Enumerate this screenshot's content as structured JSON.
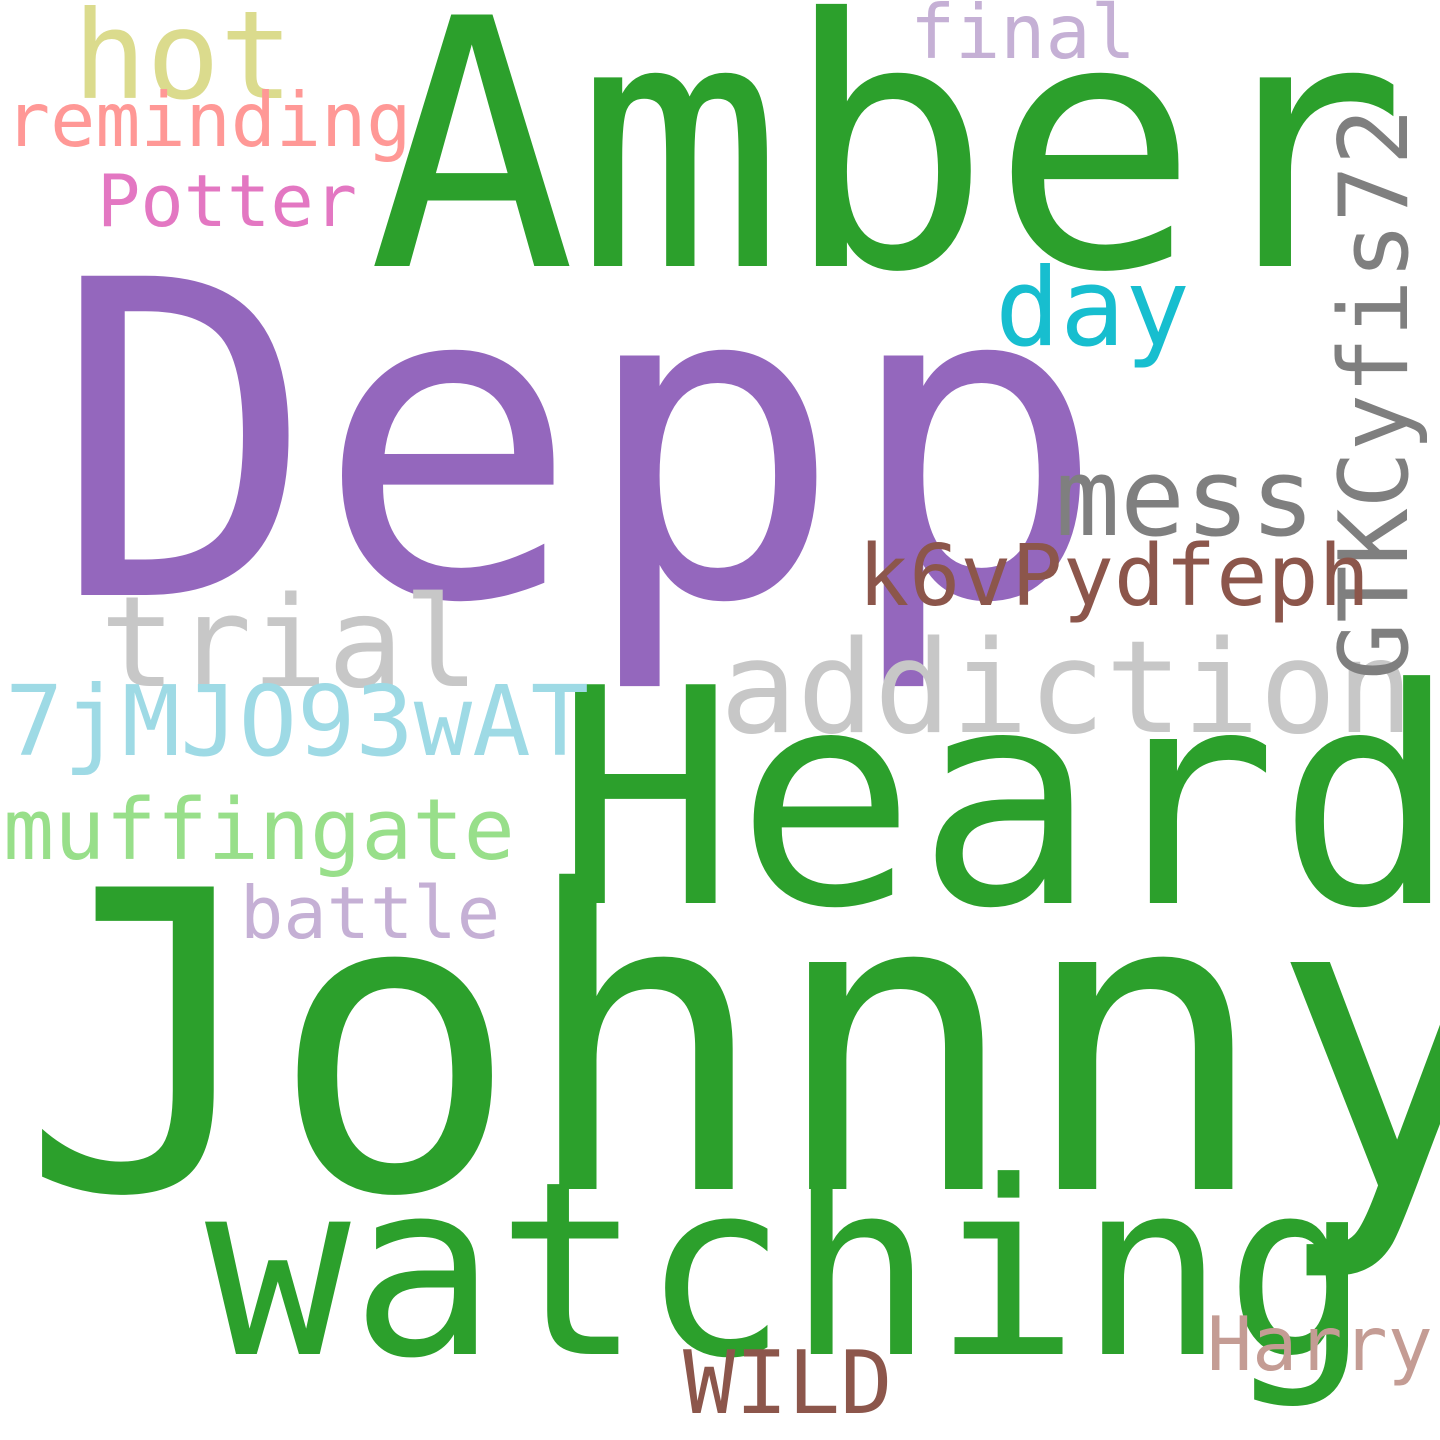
{
  "words": [
    {
      "text": "Johnny",
      "color": "#2ca02c"
    },
    {
      "text": "Depp",
      "color": "#9467bd"
    },
    {
      "text": "Amber",
      "color": "#2ca02c"
    },
    {
      "text": "Heard",
      "color": "#2ca02c"
    },
    {
      "text": "watching",
      "color": "#2ca02c"
    },
    {
      "text": "addiction",
      "color": "#c7c7c7"
    },
    {
      "text": "trial",
      "color": "#c7c7c7"
    },
    {
      "text": "mess",
      "color": "#7f7f7f"
    },
    {
      "text": "day",
      "color": "#17becf"
    },
    {
      "text": "GTKCyfis72",
      "color": "#7f7f7f"
    },
    {
      "text": "hot",
      "color": "#dbdb8d"
    },
    {
      "text": "7jMJO93wAT",
      "color": "#9edae5"
    },
    {
      "text": "muffingate",
      "color": "#98df8a"
    },
    {
      "text": "k6vPydfeph",
      "color": "#8c564b"
    },
    {
      "text": "WILD",
      "color": "#8c564b"
    },
    {
      "text": "reminding",
      "color": "#ff9896"
    },
    {
      "text": "final",
      "color": "#c5b0d5"
    },
    {
      "text": "Potter",
      "color": "#e377c2"
    },
    {
      "text": "battle",
      "color": "#c5b0d5"
    },
    {
      "text": "Harry",
      "color": "#c49c94"
    }
  ]
}
